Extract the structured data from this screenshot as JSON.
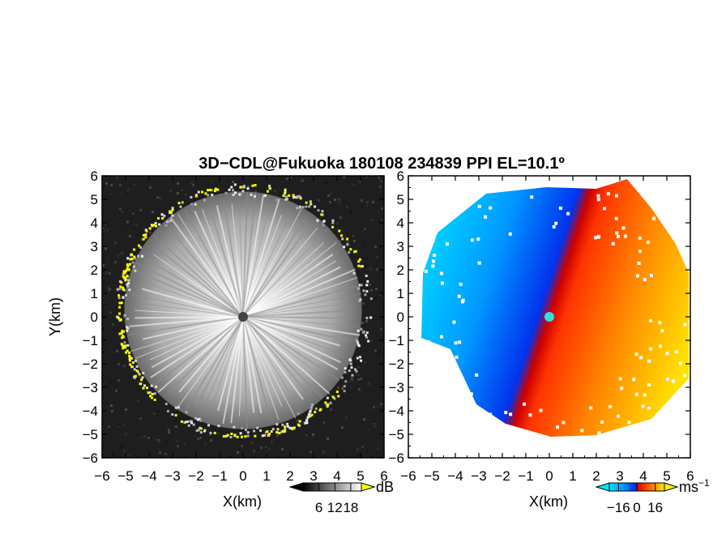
{
  "title": "3D−CDL@Fukuoka 180108 234839 PPI EL=10.1º",
  "chart_data": [
    {
      "type": "heatmap",
      "panel": "left",
      "variable": "reflectivity",
      "xlabel": "X(km)",
      "ylabel": "Y(km)",
      "xlim": [
        -6,
        6
      ],
      "ylim": [
        -6,
        6
      ],
      "xticks": [
        "−6",
        "−5",
        "−4",
        "−3",
        "−2",
        "−1",
        "0",
        "1",
        "2",
        "3",
        "4",
        "5",
        "6"
      ],
      "yticks": [
        "6",
        "5",
        "4",
        "3",
        "2",
        "1",
        "0",
        "−1",
        "−2",
        "−3",
        "−4",
        "−5",
        "−6"
      ],
      "max_range_km": 5.4,
      "colormap": [
        "#000000",
        "#ffffff"
      ],
      "highlight_color": "#ffff00",
      "colorbar": {
        "unit": "dB",
        "ticks": [
          "6",
          "12",
          "18"
        ],
        "range": [
          0,
          22
        ],
        "tick_values": [
          6,
          12,
          18
        ]
      }
    },
    {
      "type": "heatmap",
      "panel": "right",
      "variable": "doppler_velocity",
      "xlabel": "X(km)",
      "ylabel": "",
      "xlim": [
        -6,
        6
      ],
      "ylim": [
        -6,
        6
      ],
      "xticks": [
        "−6",
        "−5",
        "−4",
        "−3",
        "−2",
        "−1",
        "0",
        "1",
        "2",
        "3",
        "4",
        "5",
        "6"
      ],
      "yticks": [
        "6",
        "5",
        "4",
        "3",
        "2",
        "1",
        "0",
        "−1",
        "−2",
        "−3",
        "−4",
        "−5",
        "−6"
      ],
      "max_range_km": 6.0,
      "colormap": [
        "#00e5ff",
        "#0099ff",
        "#0022dd",
        "#dd0000",
        "#ff6a00",
        "#ffee00"
      ],
      "colorbar": {
        "unit": "ms",
        "unit_exp": "−1",
        "ticks": [
          "−16",
          "0",
          "16"
        ],
        "range": [
          -24,
          24
        ],
        "tick_values": [
          -16,
          0,
          16
        ]
      }
    }
  ]
}
